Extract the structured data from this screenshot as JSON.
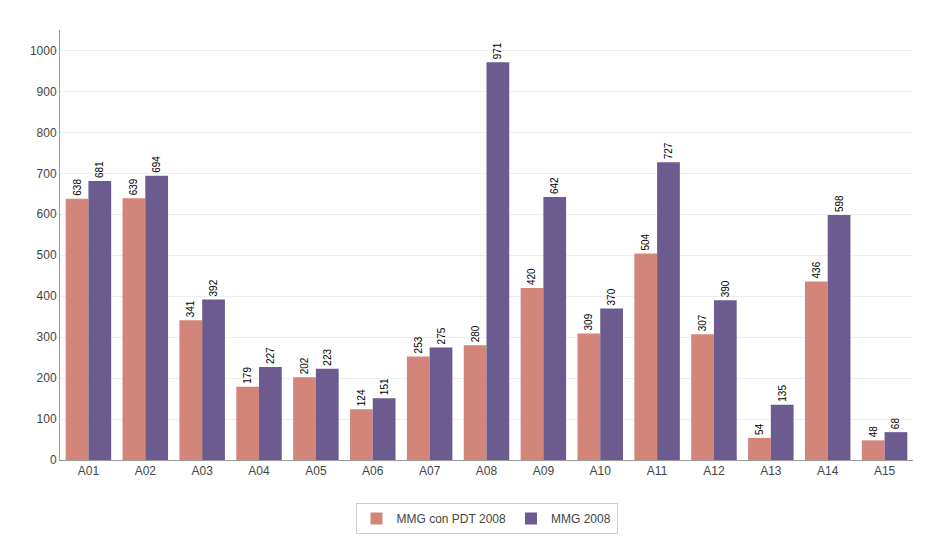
{
  "chart_data": {
    "type": "bar",
    "categories": [
      "A01",
      "A02",
      "A03",
      "A04",
      "A05",
      "A06",
      "A07",
      "A08",
      "A09",
      "A10",
      "A11",
      "A12",
      "A13",
      "A14",
      "A15"
    ],
    "series": [
      {
        "name": "MMG con PDT 2008",
        "color": "#D4857A",
        "values": [
          638,
          639,
          341,
          179,
          202,
          124,
          253,
          280,
          420,
          309,
          504,
          307,
          54,
          436,
          48
        ]
      },
      {
        "name": "MMG 2008",
        "color": "#6B5B8E",
        "values": [
          681,
          694,
          392,
          227,
          223,
          151,
          275,
          971,
          642,
          370,
          727,
          390,
          135,
          598,
          68
        ]
      }
    ],
    "ylim": [
      0,
      1050
    ],
    "yticks": [
      0,
      100,
      200,
      300,
      400,
      500,
      600,
      700,
      800,
      900,
      1000
    ],
    "grid": true,
    "legend": "bottom",
    "data_labels": true
  }
}
